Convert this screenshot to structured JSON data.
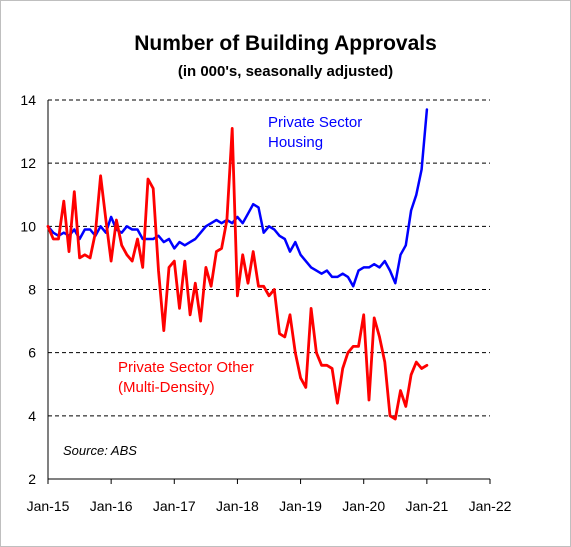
{
  "chart_data": {
    "type": "line",
    "title": "Number of Building Approvals",
    "subtitle": "(in 000's, seasonally adjusted)",
    "xlabel": "",
    "ylabel": "",
    "ylim": [
      2,
      14
    ],
    "yticks": [
      "2",
      "4",
      "6",
      "8",
      "10",
      "12",
      "14"
    ],
    "xticks": [
      "Jan-15",
      "Jan-16",
      "Jan-17",
      "Jan-18",
      "Jan-19",
      "Jan-20",
      "Jan-21",
      "Jan-22"
    ],
    "grid": "horizontal dashed",
    "source": "Source: ABS",
    "series": [
      {
        "name": "Private Sector Housing",
        "label_lines": [
          "Private Sector",
          "Housing"
        ],
        "color": "#0000ff",
        "points": [
          [
            "2015-01",
            10.0
          ],
          [
            "2015-02",
            9.8
          ],
          [
            "2015-03",
            9.7
          ],
          [
            "2015-04",
            9.8
          ],
          [
            "2015-05",
            9.7
          ],
          [
            "2015-06",
            9.9
          ],
          [
            "2015-07",
            9.6
          ],
          [
            "2015-08",
            9.9
          ],
          [
            "2015-09",
            9.9
          ],
          [
            "2015-10",
            9.7
          ],
          [
            "2015-11",
            10.0
          ],
          [
            "2015-12",
            9.8
          ],
          [
            "2016-01",
            10.3
          ],
          [
            "2016-02",
            9.9
          ],
          [
            "2016-03",
            9.8
          ],
          [
            "2016-04",
            10.0
          ],
          [
            "2016-05",
            9.9
          ],
          [
            "2016-06",
            9.9
          ],
          [
            "2016-07",
            9.6
          ],
          [
            "2016-08",
            9.6
          ],
          [
            "2016-09",
            9.6
          ],
          [
            "2016-10",
            9.7
          ],
          [
            "2016-11",
            9.5
          ],
          [
            "2016-12",
            9.6
          ],
          [
            "2017-01",
            9.3
          ],
          [
            "2017-02",
            9.5
          ],
          [
            "2017-03",
            9.4
          ],
          [
            "2017-04",
            9.5
          ],
          [
            "2017-05",
            9.6
          ],
          [
            "2017-06",
            9.8
          ],
          [
            "2017-07",
            10.0
          ],
          [
            "2017-08",
            10.1
          ],
          [
            "2017-09",
            10.2
          ],
          [
            "2017-10",
            10.1
          ],
          [
            "2017-11",
            10.2
          ],
          [
            "2017-12",
            10.1
          ],
          [
            "2018-01",
            10.3
          ],
          [
            "2018-02",
            10.1
          ],
          [
            "2018-03",
            10.4
          ],
          [
            "2018-04",
            10.7
          ],
          [
            "2018-05",
            10.6
          ],
          [
            "2018-06",
            9.8
          ],
          [
            "2018-07",
            10.0
          ],
          [
            "2018-08",
            9.9
          ],
          [
            "2018-09",
            9.7
          ],
          [
            "2018-10",
            9.6
          ],
          [
            "2018-11",
            9.2
          ],
          [
            "2018-12",
            9.5
          ],
          [
            "2019-01",
            9.1
          ],
          [
            "2019-02",
            8.9
          ],
          [
            "2019-03",
            8.7
          ],
          [
            "2019-04",
            8.6
          ],
          [
            "2019-05",
            8.5
          ],
          [
            "2019-06",
            8.6
          ],
          [
            "2019-07",
            8.4
          ],
          [
            "2019-08",
            8.4
          ],
          [
            "2019-09",
            8.5
          ],
          [
            "2019-10",
            8.4
          ],
          [
            "2019-11",
            8.1
          ],
          [
            "2019-12",
            8.6
          ],
          [
            "2020-01",
            8.7
          ],
          [
            "2020-02",
            8.7
          ],
          [
            "2020-03",
            8.8
          ],
          [
            "2020-04",
            8.7
          ],
          [
            "2020-05",
            8.9
          ],
          [
            "2020-06",
            8.6
          ],
          [
            "2020-07",
            8.2
          ],
          [
            "2020-08",
            9.1
          ],
          [
            "2020-09",
            9.4
          ],
          [
            "2020-10",
            10.5
          ],
          [
            "2020-11",
            11.0
          ],
          [
            "2020-12",
            11.8
          ],
          [
            "2021-01",
            13.7
          ]
        ]
      },
      {
        "name": "Private Sector Other (Multi-Density)",
        "label_lines": [
          "Private Sector Other",
          "(Multi-Density)"
        ],
        "color": "#ff0000",
        "points": [
          [
            "2015-01",
            10.0
          ],
          [
            "2015-02",
            9.6
          ],
          [
            "2015-03",
            9.6
          ],
          [
            "2015-04",
            10.8
          ],
          [
            "2015-05",
            9.2
          ],
          [
            "2015-06",
            11.1
          ],
          [
            "2015-07",
            9.0
          ],
          [
            "2015-08",
            9.1
          ],
          [
            "2015-09",
            9.0
          ],
          [
            "2015-10",
            9.8
          ],
          [
            "2015-11",
            11.6
          ],
          [
            "2015-12",
            10.2
          ],
          [
            "2016-01",
            8.9
          ],
          [
            "2016-02",
            10.2
          ],
          [
            "2016-03",
            9.4
          ],
          [
            "2016-04",
            9.1
          ],
          [
            "2016-05",
            8.9
          ],
          [
            "2016-06",
            9.6
          ],
          [
            "2016-07",
            8.7
          ],
          [
            "2016-08",
            11.5
          ],
          [
            "2016-09",
            11.2
          ],
          [
            "2016-10",
            8.6
          ],
          [
            "2016-11",
            6.7
          ],
          [
            "2016-12",
            8.7
          ],
          [
            "2017-01",
            8.9
          ],
          [
            "2017-02",
            7.4
          ],
          [
            "2017-03",
            8.9
          ],
          [
            "2017-04",
            7.2
          ],
          [
            "2017-05",
            8.2
          ],
          [
            "2017-06",
            7.0
          ],
          [
            "2017-07",
            8.7
          ],
          [
            "2017-08",
            8.1
          ],
          [
            "2017-09",
            9.2
          ],
          [
            "2017-10",
            9.3
          ],
          [
            "2017-11",
            10.2
          ],
          [
            "2017-12",
            13.1
          ],
          [
            "2018-01",
            7.8
          ],
          [
            "2018-02",
            9.1
          ],
          [
            "2018-03",
            8.2
          ],
          [
            "2018-04",
            9.2
          ],
          [
            "2018-05",
            8.1
          ],
          [
            "2018-06",
            8.1
          ],
          [
            "2018-07",
            7.8
          ],
          [
            "2018-08",
            8.0
          ],
          [
            "2018-09",
            6.6
          ],
          [
            "2018-10",
            6.5
          ],
          [
            "2018-11",
            7.2
          ],
          [
            "2018-12",
            6.0
          ],
          [
            "2019-01",
            5.2
          ],
          [
            "2019-02",
            4.9
          ],
          [
            "2019-03",
            7.4
          ],
          [
            "2019-04",
            6.0
          ],
          [
            "2019-05",
            5.6
          ],
          [
            "2019-06",
            5.6
          ],
          [
            "2019-07",
            5.5
          ],
          [
            "2019-08",
            4.4
          ],
          [
            "2019-09",
            5.5
          ],
          [
            "2019-10",
            6.0
          ],
          [
            "2019-11",
            6.2
          ],
          [
            "2019-12",
            6.2
          ],
          [
            "2020-01",
            7.2
          ],
          [
            "2020-02",
            4.5
          ],
          [
            "2020-03",
            7.1
          ],
          [
            "2020-04",
            6.5
          ],
          [
            "2020-05",
            5.7
          ],
          [
            "2020-06",
            4.0
          ],
          [
            "2020-07",
            3.9
          ],
          [
            "2020-08",
            4.8
          ],
          [
            "2020-09",
            4.3
          ],
          [
            "2020-10",
            5.3
          ],
          [
            "2020-11",
            5.7
          ],
          [
            "2020-12",
            5.5
          ],
          [
            "2021-01",
            5.6
          ]
        ]
      }
    ]
  }
}
